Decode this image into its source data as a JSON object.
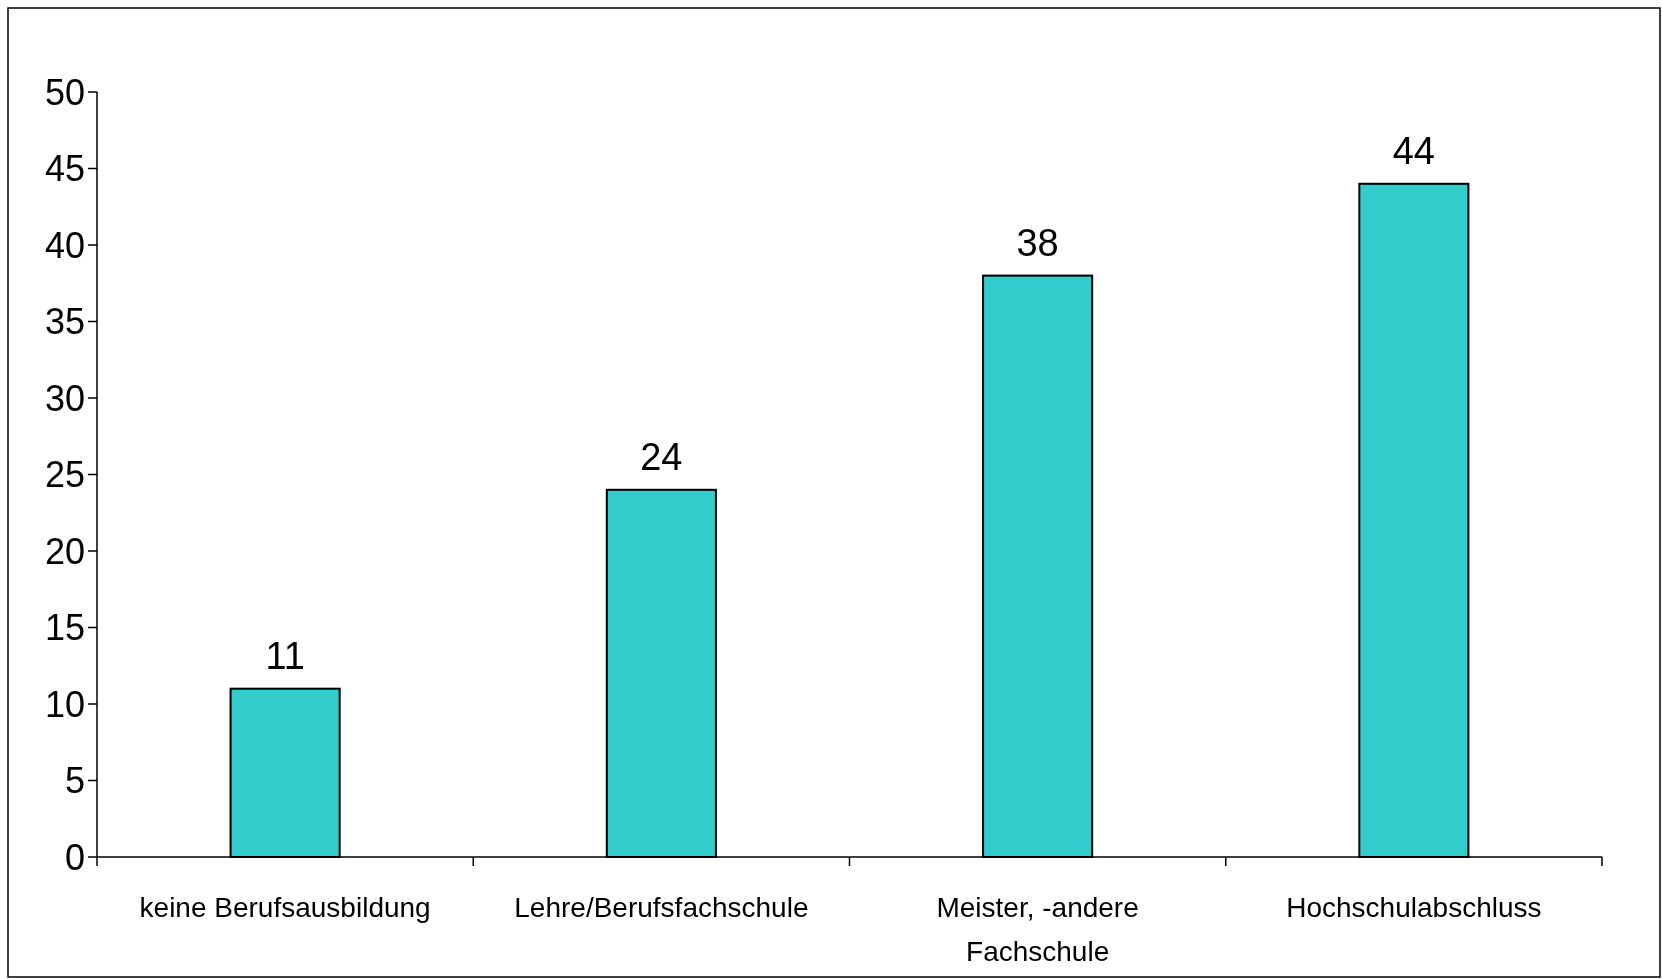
{
  "chart_data": {
    "type": "bar",
    "categories": [
      "keine Berufsausbildung",
      "Lehre/Berufsfachschule",
      "Meister, -andere Fachschule",
      "Hochschulabschluss"
    ],
    "values": [
      11,
      24,
      38,
      44
    ],
    "color": "#33cccc",
    "ylim": [
      0,
      50
    ],
    "yticks": [
      0,
      5,
      10,
      15,
      20,
      25,
      30,
      35,
      40,
      45,
      50
    ],
    "grid": false,
    "data_labels": true
  }
}
